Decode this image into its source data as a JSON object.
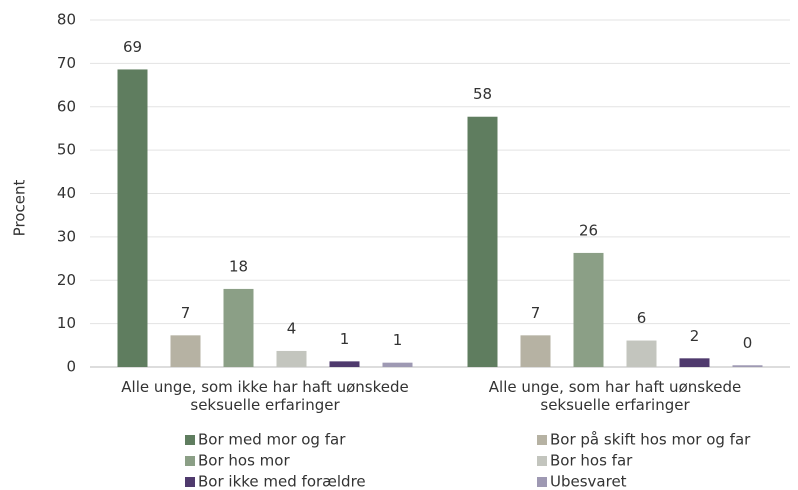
{
  "chart_data": {
    "type": "bar",
    "y_label": "Procent",
    "categories": [
      "Alle unge, som ikke har haft uønskede seksuelle erfaringer",
      "Alle unge, som har haft uønskede seksuelle erfaringer"
    ],
    "series": [
      {
        "name": "Bor med mor og far",
        "color": "#5f7d5f",
        "values": [
          68.6,
          57.7
        ],
        "value_labels": [
          "69",
          "58"
        ]
      },
      {
        "name": "Bor på skift hos mor og far",
        "color": "#b6b2a3",
        "values": [
          7.3,
          7.3
        ],
        "value_labels": [
          "7",
          "7"
        ]
      },
      {
        "name": "Bor hos mor",
        "color": "#8b9f86",
        "values": [
          18,
          26.3
        ],
        "value_labels": [
          "18",
          "26"
        ]
      },
      {
        "name": "Bor hos far",
        "color": "#c3c5be",
        "values": [
          3.7,
          6.1
        ],
        "value_labels": [
          "4",
          "6"
        ]
      },
      {
        "name": "Bor ikke med forældre",
        "color": "#4f3a6d",
        "values": [
          1.3,
          2.0
        ],
        "value_labels": [
          "1",
          "2"
        ]
      },
      {
        "name": "Ubesvaret",
        "color": "#9e99b3",
        "values": [
          1.0,
          0.4
        ],
        "value_labels": [
          "1",
          "0"
        ]
      }
    ],
    "ylim": [
      0,
      80
    ],
    "yticks": [
      0,
      10,
      20,
      30,
      40,
      50,
      60,
      70,
      80
    ],
    "grid": true,
    "legend": "bottom"
  }
}
